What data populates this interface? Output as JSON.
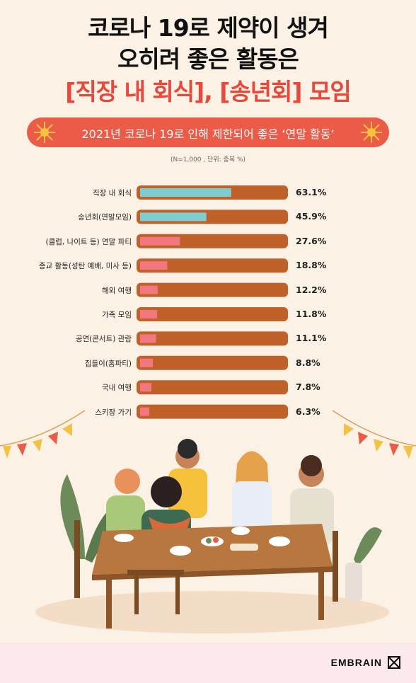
{
  "title": {
    "line1": "코로나 19로 제약이 생겨",
    "line2": "오히려 좋은 활동은",
    "line3": "[직장 내 회식], [송년회] 모임"
  },
  "banner": "2021년 코로나 19로 인해 제한되어 좋은 ‘연말 활동’",
  "note": "(N=1,000 , 단위: 중복 %)",
  "colors": {
    "top": "#7ecdd0",
    "other": "#f2777e",
    "track": "#c0612a",
    "accent": "#e8473a"
  },
  "chart_data": {
    "type": "bar",
    "orientation": "horizontal",
    "categories": [
      "직장 내 회식",
      "송년회(연말모임)",
      "(클럽, 나이트 등) 연말 파티",
      "종교 활동(성탄 예배, 미사 등)",
      "해외 여행",
      "가족 모임",
      "공연(콘서트) 관람",
      "집들이(홈파티)",
      "국내 여행",
      "스키장 가기"
    ],
    "values": [
      63.1,
      45.9,
      27.6,
      18.8,
      12.2,
      11.8,
      11.1,
      8.8,
      7.8,
      6.3
    ],
    "value_labels": [
      "63.1%",
      "45.9%",
      "27.6%",
      "18.8%",
      "12.2%",
      "11.8%",
      "11.1%",
      "8.8%",
      "7.8%",
      "6.3%"
    ],
    "xlim": [
      0,
      100
    ],
    "highlighted": [
      0,
      1
    ]
  },
  "footer": {
    "logo": "EMBRAIN"
  }
}
